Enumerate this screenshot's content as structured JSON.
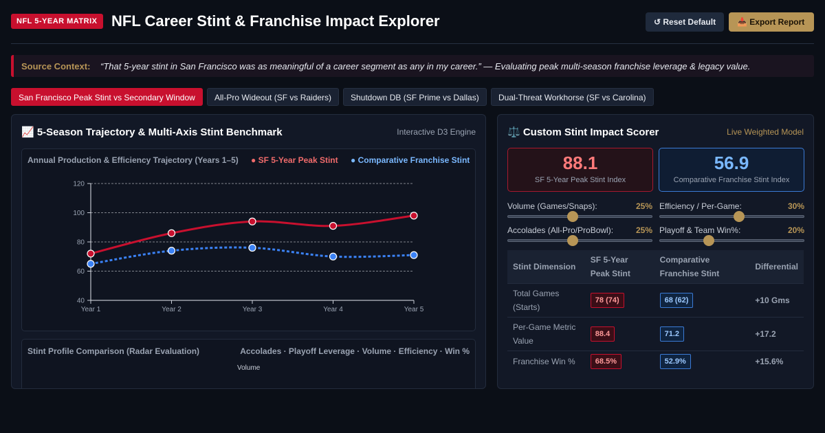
{
  "header": {
    "badge": "NFL 5-YEAR MATRIX",
    "title": "NFL Career Stint & Franchise Impact Explorer",
    "reset_label": "↺ Reset Default",
    "export_label": "📥 Export Report"
  },
  "context": {
    "label": "Source Context:",
    "quote": "“That 5-year stint in San Francisco was as meaningful of a career segment as any in my career.” — Evaluating peak multi-season franchise leverage & legacy value."
  },
  "tabs": [
    {
      "label": "San Francisco Peak Stint vs Secondary Window",
      "active": true
    },
    {
      "label": "All-Pro Wideout (SF vs Raiders)",
      "active": false
    },
    {
      "label": "Shutdown DB (SF Prime vs Dallas)",
      "active": false
    },
    {
      "label": "Dual-Threat Workhorse (SF vs Carolina)",
      "active": false
    }
  ],
  "left_panel": {
    "title": "📈 5-Season Trajectory & Multi-Axis Stint Benchmark",
    "engine": "Interactive D3 Engine",
    "chart_title": "Annual Production & Efficiency Trajectory (Years 1–5)",
    "legend_a": "● SF 5-Year Peak Stint",
    "legend_b": "● Comparative Franchise Stint",
    "radar_title": "Stint Profile Comparison (Radar Evaluation)",
    "radar_axes": "Accolades · Playoff Leverage · Volume · Efficiency · Win %",
    "radar_volume_label": "Volume"
  },
  "chart_data": {
    "type": "line",
    "title": "Annual Production & Efficiency Trajectory (Years 1–5)",
    "xlabel": "",
    "ylabel": "",
    "categories": [
      "Year 1",
      "Year 2",
      "Year 3",
      "Year 4",
      "Year 5"
    ],
    "ylim": [
      40,
      120
    ],
    "yticks": [
      40,
      60,
      80,
      100,
      120
    ],
    "grid": true,
    "series": [
      {
        "name": "SF 5-Year Peak Stint",
        "values": [
          72,
          86,
          94,
          91,
          98
        ],
        "color": "#c8102e",
        "style": "solid"
      },
      {
        "name": "Comparative Franchise Stint",
        "values": [
          65,
          74,
          76,
          70,
          71
        ],
        "color": "#3b82f6",
        "style": "dashed"
      }
    ]
  },
  "right_panel": {
    "title": "⚖️ Custom Stint Impact Scorer",
    "model": "Live Weighted Model",
    "score_a": {
      "value": "88.1",
      "label": "SF 5-Year Peak Stint Index"
    },
    "score_b": {
      "value": "56.9",
      "label": "Comparative Franchise Stint Index"
    },
    "sliders": [
      {
        "label": "Volume (Games/Snaps):",
        "pct": "25%",
        "value": 0.45
      },
      {
        "label": "Efficiency / Per-Game:",
        "pct": "30%",
        "value": 0.55
      },
      {
        "label": "Accolades (All-Pro/ProBowl):",
        "pct": "25%",
        "value": 0.45
      },
      {
        "label": "Playoff & Team Win%:",
        "pct": "20%",
        "value": 0.34
      }
    ],
    "table": {
      "headers": [
        "Stint Dimension",
        "SF 5-Year Peak Stint",
        "Comparative Franchise Stint",
        "Differential"
      ],
      "rows": [
        {
          "dimension": "Total Games (Starts)",
          "sf": "78 (74)",
          "comp": "68 (62)",
          "diff": "+10 Gms"
        },
        {
          "dimension": "Per-Game Metric Value",
          "sf": "88.4",
          "comp": "71.2",
          "diff": "+17.2"
        },
        {
          "dimension": "Franchise Win %",
          "sf": "68.5%",
          "comp": "52.9%",
          "diff": "+15.6%"
        }
      ]
    }
  }
}
